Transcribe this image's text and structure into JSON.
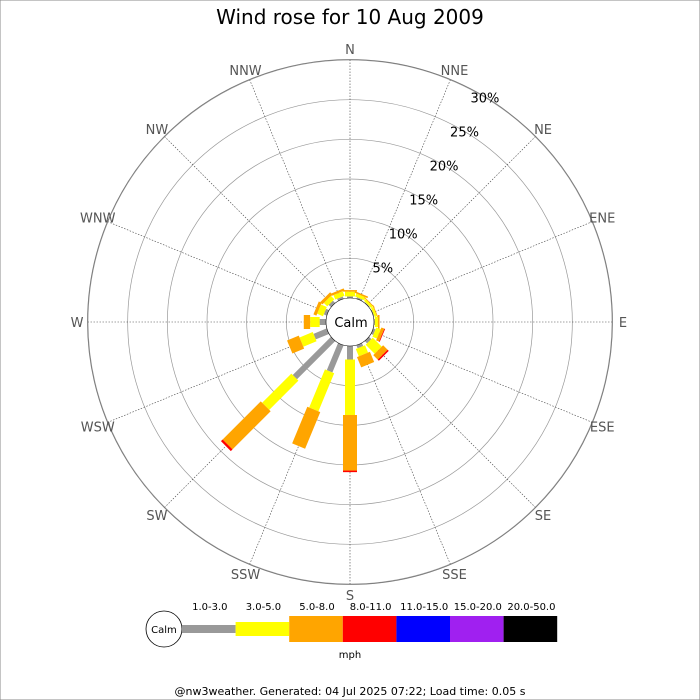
{
  "chart_data": {
    "type": "wind_rose",
    "title": "Wind rose for 10 Aug 2009",
    "directions": [
      "N",
      "NNE",
      "NE",
      "ENE",
      "E",
      "ESE",
      "SE",
      "SSE",
      "S",
      "SSW",
      "SW",
      "WSW",
      "W",
      "WNW",
      "NW",
      "NNW"
    ],
    "radial_ticks": [
      "5%",
      "10%",
      "15%",
      "20%",
      "25%",
      "30%"
    ],
    "radial_max": 30,
    "calm_label": "Calm",
    "speed_bins": [
      {
        "label": "1.0-3.0",
        "color": "#999999"
      },
      {
        "label": "3.0-5.0",
        "color": "#ffff00"
      },
      {
        "label": "5.0-8.0",
        "color": "#ffa500"
      },
      {
        "label": "8.0-11.0",
        "color": "#ff0000"
      },
      {
        "label": "11.0-15.0",
        "color": "#0000ff"
      },
      {
        "label": "15.0-20.0",
        "color": "#a020f0"
      },
      {
        "label": "20.0-50.0",
        "color": "#000000"
      }
    ],
    "units": "mph",
    "series": [
      {
        "direction": "N",
        "values": [
          0.2,
          0.6,
          0.2,
          0,
          0,
          0,
          0
        ]
      },
      {
        "direction": "NNE",
        "values": [
          0.2,
          0.4,
          0.2,
          0,
          0,
          0,
          0
        ]
      },
      {
        "direction": "NE",
        "values": [
          0.1,
          0.3,
          0.1,
          0,
          0,
          0,
          0
        ]
      },
      {
        "direction": "ENE",
        "values": [
          0.1,
          0.3,
          0.1,
          0,
          0,
          0,
          0
        ]
      },
      {
        "direction": "E",
        "values": [
          0.1,
          0.4,
          0.2,
          0,
          0,
          0,
          0
        ]
      },
      {
        "direction": "ESE",
        "values": [
          0.3,
          0.6,
          0.4,
          0.1,
          0,
          0,
          0
        ]
      },
      {
        "direction": "SE",
        "values": [
          0.4,
          1.6,
          0.8,
          0.2,
          0,
          0,
          0
        ]
      },
      {
        "direction": "SSE",
        "values": [
          0.4,
          1.0,
          1.4,
          0,
          0,
          0,
          0
        ]
      },
      {
        "direction": "S",
        "values": [
          1.7,
          7.0,
          7.0,
          0.2,
          0,
          0,
          0
        ]
      },
      {
        "direction": "SSW",
        "values": [
          3.7,
          5.2,
          5.0,
          0,
          0,
          0,
          0
        ]
      },
      {
        "direction": "SW",
        "values": [
          6.8,
          5.2,
          6.8,
          0.3,
          0,
          0,
          0
        ]
      },
      {
        "direction": "WSW",
        "values": [
          1.8,
          1.8,
          1.6,
          0,
          0,
          0,
          0
        ]
      },
      {
        "direction": "W",
        "values": [
          0.8,
          1.2,
          0.8,
          0,
          0,
          0,
          0
        ]
      },
      {
        "direction": "WNW",
        "values": [
          0.4,
          0.8,
          0.4,
          0,
          0,
          0,
          0
        ]
      },
      {
        "direction": "NW",
        "values": [
          0.4,
          0.6,
          0.4,
          0,
          0,
          0,
          0
        ]
      },
      {
        "direction": "NNW",
        "values": [
          0.3,
          0.6,
          0.3,
          0,
          0,
          0,
          0
        ]
      }
    ]
  },
  "footer": "@nw3weather. Generated: 04 Jul 2025 07:22; Load time: 0.05 s"
}
